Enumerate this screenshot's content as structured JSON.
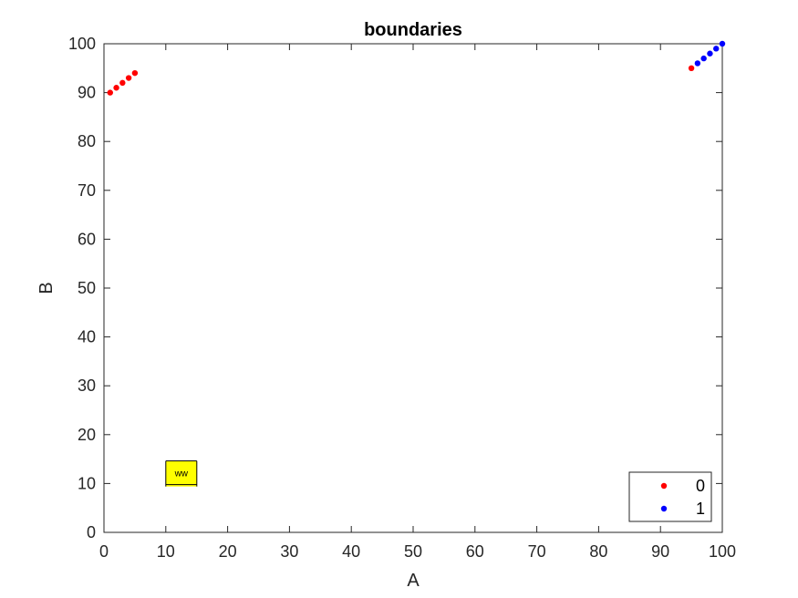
{
  "chart_data": {
    "type": "scatter",
    "title": "boundaries",
    "xlabel": "A",
    "ylabel": "B",
    "xlim": [
      0,
      100
    ],
    "ylim": [
      0,
      100
    ],
    "xticks": [
      0,
      10,
      20,
      30,
      40,
      50,
      60,
      70,
      80,
      90,
      100
    ],
    "yticks": [
      0,
      10,
      20,
      30,
      40,
      50,
      60,
      70,
      80,
      90,
      100
    ],
    "grid": false,
    "legend_position": "bottom-right",
    "series": [
      {
        "name": "0",
        "color": "#ff0000",
        "points": [
          [
            1,
            90
          ],
          [
            2,
            91
          ],
          [
            3,
            92
          ],
          [
            4,
            93
          ],
          [
            5,
            94
          ],
          [
            95,
            95
          ]
        ]
      },
      {
        "name": "1",
        "color": "#0000ff",
        "points": [
          [
            96,
            96
          ],
          [
            97,
            97
          ],
          [
            98,
            98
          ],
          [
            99,
            99
          ],
          [
            100,
            100
          ]
        ]
      }
    ],
    "annotations": [
      {
        "text": "ww",
        "x": 10,
        "y": 12,
        "background": "#ffff00"
      }
    ]
  }
}
